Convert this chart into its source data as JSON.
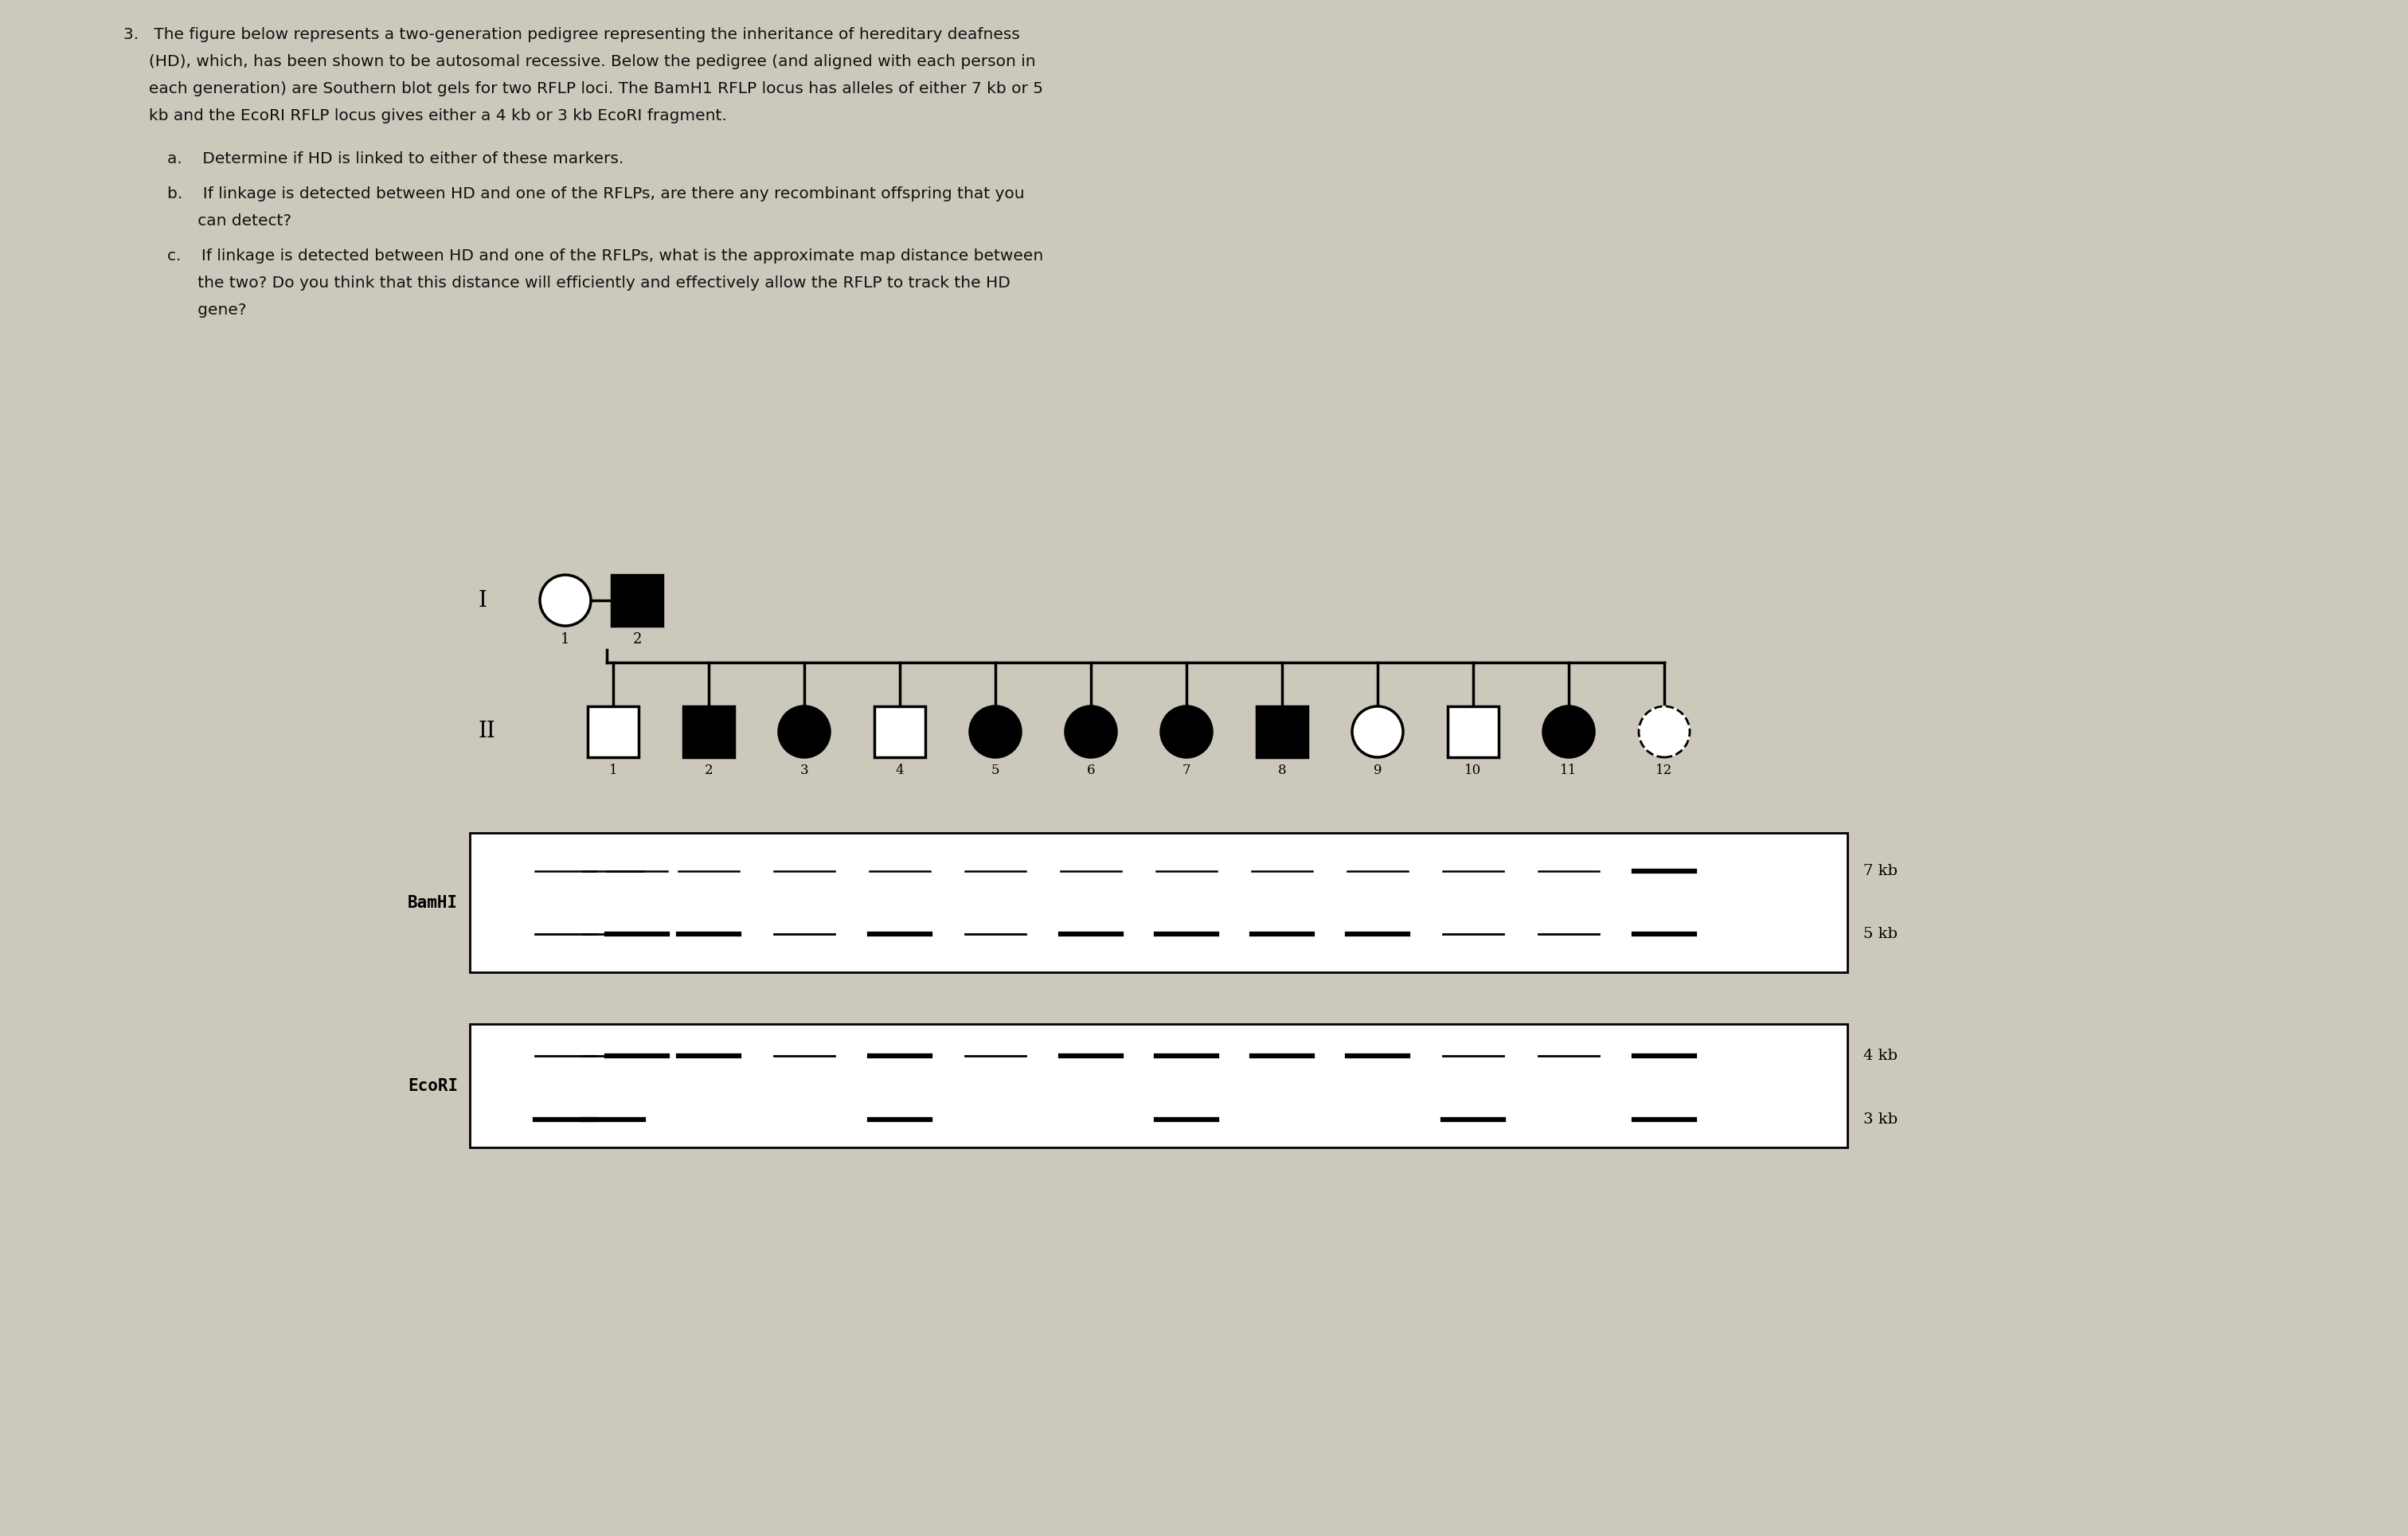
{
  "bg_color": "#ccc8bc",
  "text_color": "#111111",
  "main_text_lines": [
    "3.   The figure below represents a two-generation pedigree representing the inheritance of hereditary deafness",
    "     (HD), which, has been shown to be autosomal recessive. Below the pedigree (and aligned with each person in",
    "     each generation) are Southern blot gels for two RFLP loci. The BamH1 RFLP locus has alleles of either 7 kb or 5",
    "     kb and the EcoRI RFLP locus gives either a 4 kb or 3 kb EcoRI fragment."
  ],
  "sub_a": "a.    Determine if HD is linked to either of these markers.",
  "sub_b_line1": "b.    If linkage is detected between HD and one of the RFLPs, are there any recombinant offspring that you",
  "sub_b_line2": "      can detect?",
  "sub_c_line1": "c.    If linkage is detected between HD and one of the RFLPs, what is the approximate map distance between",
  "sub_c_line2": "      the two? Do you think that this distance will efficiently and effectively allow the RFLP to track the HD",
  "sub_c_line3": "      gene?",
  "gen1": [
    {
      "sex": "F",
      "affected": false,
      "label": "1",
      "dashed": true
    },
    {
      "sex": "M",
      "affected": true,
      "label": "2",
      "dashed": false
    }
  ],
  "gen2": [
    {
      "sex": "M",
      "affected": false,
      "label": "1"
    },
    {
      "sex": "M",
      "affected": true,
      "label": "2"
    },
    {
      "sex": "F",
      "affected": true,
      "label": "3"
    },
    {
      "sex": "M",
      "affected": false,
      "label": "4"
    },
    {
      "sex": "F",
      "affected": true,
      "label": "5"
    },
    {
      "sex": "F",
      "affected": true,
      "label": "6"
    },
    {
      "sex": "F",
      "affected": true,
      "label": "7"
    },
    {
      "sex": "M",
      "affected": true,
      "label": "8"
    },
    {
      "sex": "F",
      "affected": false,
      "label": "9"
    },
    {
      "sex": "M",
      "affected": false,
      "label": "10"
    },
    {
      "sex": "F",
      "affected": true,
      "label": "11"
    },
    {
      "sex": "F",
      "affected": false,
      "label": "12",
      "dashed": true
    }
  ],
  "bamhi_7kb": [
    false,
    false,
    false,
    false,
    false,
    false,
    false,
    false,
    false,
    true,
    false,
    false,
    false,
    true
  ],
  "bamhi_5kb": [
    true,
    true,
    true,
    true,
    true,
    true,
    true,
    true,
    true,
    true,
    true,
    true,
    true,
    true
  ],
  "bamhi_7kb_thick": [
    false,
    false,
    false,
    false,
    false,
    false,
    false,
    false,
    false,
    false,
    false,
    false,
    false,
    true
  ],
  "bamhi_5kb_thick": [
    false,
    true,
    false,
    true,
    false,
    true,
    false,
    true,
    true,
    true,
    true,
    false,
    false,
    true
  ],
  "ecori_4kb": [
    true,
    true,
    true,
    true,
    true,
    true,
    true,
    true,
    true,
    true,
    true,
    true,
    true,
    true
  ],
  "ecori_3kb": [
    true,
    false,
    true,
    false,
    false,
    true,
    false,
    false,
    true,
    false,
    false,
    true,
    false,
    true
  ],
  "ecori_4kb_thick": [
    false,
    true,
    false,
    true,
    false,
    true,
    false,
    true,
    true,
    true,
    true,
    false,
    false,
    true
  ],
  "ecori_3kb_thick": [
    true,
    false,
    true,
    false,
    false,
    true,
    false,
    false,
    true,
    false,
    false,
    true,
    false,
    true
  ]
}
